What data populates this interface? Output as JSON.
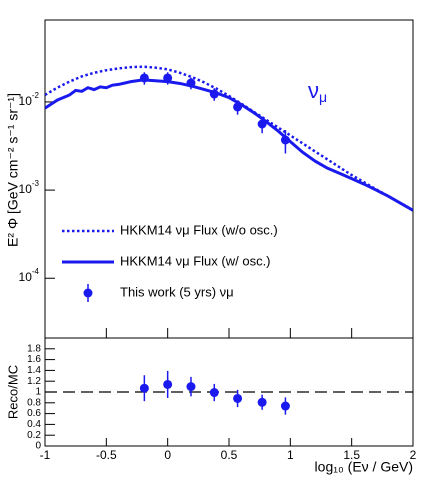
{
  "chart_data": [
    {
      "type": "line",
      "ylog": true,
      "ylabel": "E² Φ [GeV cm⁻² s⁻¹ sr⁻¹]",
      "annotation": {
        "text": "ν",
        "sub": "μ"
      },
      "xlim": [
        -1,
        2
      ],
      "xticks": [
        -1,
        -0.5,
        0,
        0.5,
        1,
        1.5,
        2
      ],
      "ylim": [
        2.1e-05,
        0.085
      ],
      "yticks": [
        {
          "value": 0.0001,
          "label": "10",
          "exponent": "-4"
        },
        {
          "value": 0.001,
          "label": "10",
          "exponent": "-3"
        },
        {
          "value": 0.01,
          "label": "10",
          "exponent": "-2"
        }
      ],
      "legend": "lower left",
      "series": [
        {
          "name": "HKKM14 νμ Flux (w/o osc.)",
          "color": "#1a1aee",
          "kind": "dotted",
          "x": [
            -1,
            -0.9,
            -0.8,
            -0.7,
            -0.6,
            -0.5,
            -0.4,
            -0.3,
            -0.2,
            -0.1,
            0,
            0.1,
            0.2,
            0.3,
            0.4,
            0.5,
            0.6,
            0.7,
            0.8,
            0.9,
            1.0,
            1.1,
            1.2,
            1.3,
            1.4,
            1.5,
            1.6,
            1.7,
            1.8,
            1.9,
            2.0
          ],
          "values": [
            0.012,
            0.0145,
            0.017,
            0.0195,
            0.0214,
            0.0229,
            0.024,
            0.0248,
            0.0251,
            0.0245,
            0.0234,
            0.0214,
            0.0191,
            0.0166,
            0.0141,
            0.0117,
            0.00955,
            0.00776,
            0.00631,
            0.00513,
            0.00417,
            0.00339,
            0.00275,
            0.00224,
            0.00182,
            0.00148,
            0.00123,
            0.00102,
            0.000851,
            0.000708,
            0.000589
          ]
        },
        {
          "name": "HKKM14 νμ Flux (w/ osc.)",
          "color": "#1a1aee",
          "kind": "solid",
          "x": [
            -1,
            -0.9,
            -0.8,
            -0.75,
            -0.7,
            -0.65,
            -0.6,
            -0.55,
            -0.5,
            -0.45,
            -0.4,
            -0.3,
            -0.2,
            -0.1,
            0,
            0.1,
            0.2,
            0.3,
            0.4,
            0.5,
            0.6,
            0.7,
            0.8,
            0.9,
            1.0,
            1.1,
            1.2,
            1.3,
            1.4,
            1.5,
            1.6,
            1.7,
            1.8,
            1.9,
            2.0
          ],
          "values": [
            0.00851,
            0.0105,
            0.012,
            0.0135,
            0.0132,
            0.0145,
            0.0138,
            0.0148,
            0.0145,
            0.0155,
            0.0158,
            0.017,
            0.0178,
            0.0174,
            0.017,
            0.0162,
            0.0151,
            0.0138,
            0.0126,
            0.0112,
            0.00933,
            0.00759,
            0.00603,
            0.00468,
            0.00355,
            0.00269,
            0.00214,
            0.00178,
            0.00155,
            0.00135,
            0.00117,
            0.001,
            0.000851,
            0.000708,
            0.000589
          ]
        },
        {
          "name": "This work (5 yrs) νμ",
          "color": "#1a1aee",
          "kind": "points",
          "x": [
            -0.19,
            0,
            0.19,
            0.38,
            0.57,
            0.77,
            0.96
          ],
          "values": [
            0.0187,
            0.0187,
            0.0164,
            0.0123,
            0.00877,
            0.00562,
            0.0037
          ],
          "errors": [
            0.003,
            0.003,
            0.0025,
            0.002,
            0.0016,
            0.0012,
            0.0011
          ]
        }
      ]
    },
    {
      "type": "scatter",
      "ylabel": "Reco/MC",
      "xlabel": "log₁₀ (Eν / GeV)",
      "xlim": [
        -1,
        2
      ],
      "xticks": [
        -1,
        -0.5,
        0,
        0.5,
        1,
        1.5,
        2
      ],
      "ylim": [
        0,
        2
      ],
      "yticks": [
        0,
        0.2,
        0.4,
        0.6,
        0.8,
        1,
        1.2,
        1.4,
        1.6,
        1.8
      ],
      "reference_line": 1,
      "series": [
        {
          "color": "#1a1aee",
          "x": [
            -0.19,
            0,
            0.19,
            0.38,
            0.57,
            0.77,
            0.96
          ],
          "values": [
            1.07,
            1.14,
            1.1,
            0.99,
            0.88,
            0.81,
            0.74
          ],
          "errors": [
            0.24,
            0.25,
            0.18,
            0.16,
            0.16,
            0.14,
            0.16
          ]
        }
      ]
    }
  ]
}
